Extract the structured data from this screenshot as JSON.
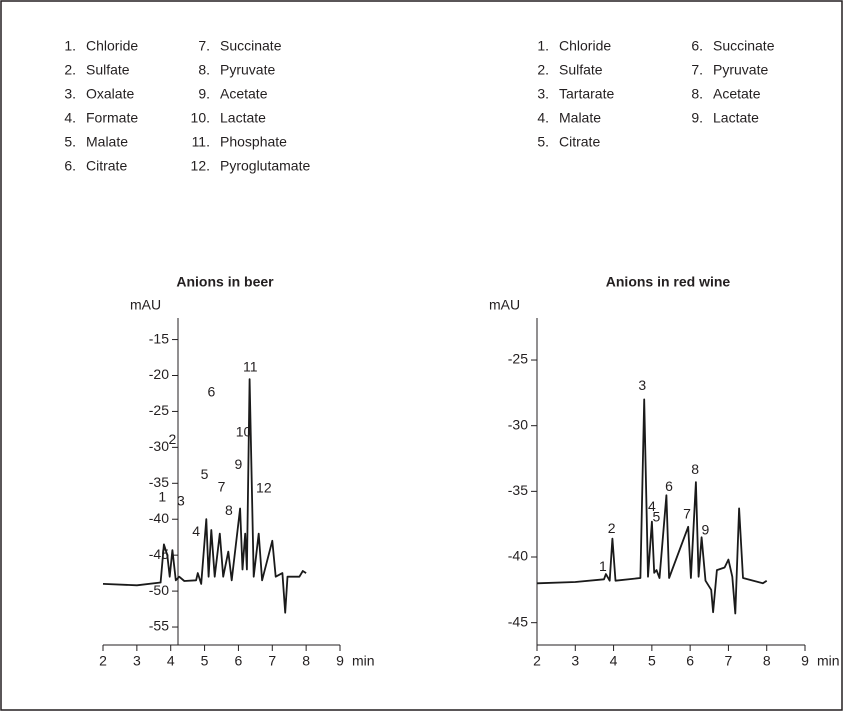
{
  "chart_data": [
    {
      "type": "line",
      "title": "Anions in beer",
      "ylabel": "mAU",
      "xlabel": "min",
      "color": "#1a1a1a",
      "compounds": [
        {
          "number": "1.",
          "name": "Chloride"
        },
        {
          "number": "2.",
          "name": "Sulfate"
        },
        {
          "number": "3.",
          "name": "Oxalate"
        },
        {
          "number": "4.",
          "name": "Formate"
        },
        {
          "number": "5.",
          "name": "Malate"
        },
        {
          "number": "6.",
          "name": "Citrate"
        },
        {
          "number": "7.",
          "name": "Succinate"
        },
        {
          "number": "8.",
          "name": "Pyruvate"
        },
        {
          "number": "9.",
          "name": "Acetate"
        },
        {
          "number": "10.",
          "name": "Lactate"
        },
        {
          "number": "11.",
          "name": "Phosphate"
        },
        {
          "number": "12.",
          "name": "Pyroglutamate"
        }
      ],
      "x": [
        2.0,
        3.0,
        3.7,
        3.8,
        3.9,
        3.97,
        4.05,
        4.15,
        4.25,
        4.4,
        4.75,
        4.8,
        4.9,
        5.05,
        5.12,
        5.2,
        5.3,
        5.45,
        5.55,
        5.7,
        5.8,
        6.05,
        6.12,
        6.2,
        6.25,
        6.33,
        6.45,
        6.6,
        6.7,
        7.0,
        7.1,
        7.3,
        7.38,
        7.45,
        7.8,
        7.9,
        8.0
      ],
      "values": [
        -49,
        -49.2,
        -48.8,
        -43.5,
        -45,
        -48,
        -44.3,
        -48.5,
        -48,
        -48.6,
        -48.5,
        -47.5,
        -49,
        -40,
        -48,
        -41.5,
        -48,
        -42,
        -48,
        -44.5,
        -48.5,
        -38.5,
        -47,
        -42,
        -47,
        -20.5,
        -48,
        -42,
        -48.5,
        -43,
        -48,
        -47.5,
        -53,
        -48,
        -48,
        -47.2,
        -47.5
      ],
      "xlim": [
        2,
        9
      ],
      "xticks": [
        2,
        3,
        4,
        5,
        6,
        7,
        8,
        9
      ],
      "ylim": [
        -57.5,
        -12
      ],
      "yticks": [
        -15,
        -20,
        -25,
        -30,
        -35,
        -40,
        -45,
        -50,
        -55
      ],
      "annotations": [
        {
          "text": "1",
          "x": 3.75,
          "y": -37
        },
        {
          "text": "2",
          "x": 4.05,
          "y": -29
        },
        {
          "text": "3",
          "x": 4.3,
          "y": -37.6
        },
        {
          "text": "4",
          "x": 4.75,
          "y": -41.8
        },
        {
          "text": "5",
          "x": 5.0,
          "y": -33.9
        },
        {
          "text": "6",
          "x": 5.2,
          "y": -22.4
        },
        {
          "text": "7",
          "x": 5.5,
          "y": -35.6
        },
        {
          "text": "8",
          "x": 5.72,
          "y": -38.9
        },
        {
          "text": "9",
          "x": 6.0,
          "y": -32.5
        },
        {
          "text": "10",
          "x": 6.15,
          "y": -28
        },
        {
          "text": "11",
          "x": 6.35,
          "y": -18.9
        },
        {
          "text": "12",
          "x": 6.75,
          "y": -35.8
        }
      ]
    },
    {
      "type": "line",
      "title": "Anions in red wine",
      "ylabel": "mAU",
      "xlabel": "min",
      "color": "#1a1a1a",
      "compounds": [
        {
          "number": "1.",
          "name": "Chloride"
        },
        {
          "number": "2.",
          "name": "Sulfate"
        },
        {
          "number": "3.",
          "name": "Tartarate"
        },
        {
          "number": "4.",
          "name": "Malate"
        },
        {
          "number": "5.",
          "name": "Citrate"
        },
        {
          "number": "6.",
          "name": "Succinate"
        },
        {
          "number": "7.",
          "name": "Pyruvate"
        },
        {
          "number": "8.",
          "name": "Acetate"
        },
        {
          "number": "9.",
          "name": "Lactate"
        }
      ],
      "x": [
        2.0,
        3.0,
        3.75,
        3.8,
        3.9,
        3.97,
        4.05,
        4.7,
        4.8,
        4.9,
        5.0,
        5.06,
        5.12,
        5.2,
        5.38,
        5.45,
        5.95,
        6.02,
        6.15,
        6.22,
        6.3,
        6.4,
        6.55,
        6.6,
        6.7,
        6.9,
        7.0,
        7.1,
        7.18,
        7.28,
        7.38,
        7.9,
        8.0
      ],
      "values": [
        -42,
        -41.9,
        -41.7,
        -41.3,
        -41.8,
        -38.6,
        -41.8,
        -41.6,
        -28,
        -41.5,
        -37.3,
        -41.2,
        -41,
        -41.6,
        -35.3,
        -41.6,
        -37.7,
        -41.6,
        -34.3,
        -41.5,
        -38.5,
        -41.8,
        -42.5,
        -44.2,
        -41,
        -40.8,
        -40.2,
        -41.5,
        -44.3,
        -36.3,
        -41.6,
        -42,
        -41.8
      ],
      "xlim": [
        2,
        9
      ],
      "xticks": [
        2,
        3,
        4,
        5,
        6,
        7,
        8,
        9
      ],
      "ylim": [
        -46.7,
        -21.8
      ],
      "yticks": [
        -25,
        -30,
        -35,
        -40,
        -45
      ],
      "annotations": [
        {
          "text": "1",
          "x": 3.72,
          "y": -40.8
        },
        {
          "text": "2",
          "x": 3.95,
          "y": -37.9
        },
        {
          "text": "3",
          "x": 4.75,
          "y": -27.0
        },
        {
          "text": "4",
          "x": 5.0,
          "y": -36.2
        },
        {
          "text": "5",
          "x": 5.12,
          "y": -37.0
        },
        {
          "text": "6",
          "x": 5.45,
          "y": -34.7
        },
        {
          "text": "7",
          "x": 5.92,
          "y": -36.8
        },
        {
          "text": "8",
          "x": 6.13,
          "y": -33.4
        },
        {
          "text": "9",
          "x": 6.4,
          "y": -38.0
        }
      ]
    }
  ]
}
